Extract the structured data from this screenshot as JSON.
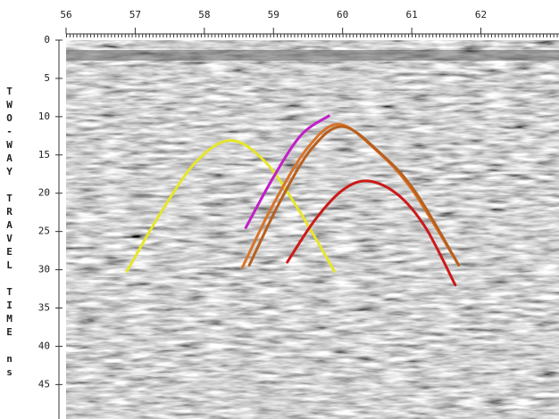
{
  "chart_data": {
    "type": "line",
    "x_axis_position": "top",
    "y_label": "TWO-WAY TRAVEL TIME ns",
    "xlim": [
      56,
      63.13
    ],
    "xticks": [
      56,
      57,
      58,
      59,
      60,
      61,
      62
    ],
    "ylim": [
      0,
      49.5
    ],
    "yticks": [
      0,
      5,
      10,
      15,
      20,
      25,
      30,
      35,
      40,
      45
    ],
    "series": [
      {
        "color": "#e6e62a",
        "x": [
          56.88,
          57.38,
          57.88,
          58.38,
          58.88,
          59.38,
          59.88
        ],
        "values": [
          30.2,
          22.4,
          15.9,
          13.1,
          15.9,
          22.4,
          30.2
        ]
      },
      {
        "color": "#c21fc8",
        "x": [
          58.6,
          59.0,
          59.4,
          59.8
        ],
        "values": [
          24.5,
          17.9,
          12.4,
          9.9
        ]
      },
      {
        "color": "#d9742a",
        "x": [
          58.55,
          59.0,
          59.5,
          59.95,
          60.5,
          61.0,
          61.66
        ],
        "values": [
          29.7,
          21.4,
          14.0,
          11.0,
          14.5,
          19.5,
          29.1
        ]
      },
      {
        "color": "#b8601e",
        "x": [
          58.65,
          59.1,
          59.55,
          60.0,
          60.55,
          61.05,
          61.68
        ],
        "values": [
          29.4,
          21.0,
          14.2,
          11.3,
          14.8,
          19.8,
          29.4
        ]
      },
      {
        "color": "#cc1a1a",
        "x": [
          59.2,
          59.6,
          60.0,
          60.37,
          60.8,
          61.2,
          61.63
        ],
        "values": [
          29,
          23.5,
          19.6,
          18.4,
          20.2,
          24.5,
          32
        ]
      }
    ]
  }
}
